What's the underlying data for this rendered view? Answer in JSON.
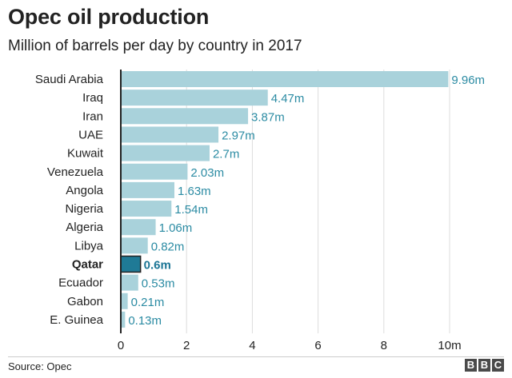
{
  "chart_data": {
    "type": "bar",
    "orientation": "horizontal",
    "title": "Opec oil production",
    "subtitle": "Million of barrels per day by country in 2017",
    "categories": [
      "Saudi Arabia",
      "Iraq",
      "Iran",
      "UAE",
      "Kuwait",
      "Venezuela",
      "Angola",
      "Nigeria",
      "Algeria",
      "Libya",
      "Qatar",
      "Ecuador",
      "Gabon",
      "E. Guinea"
    ],
    "values": [
      9.96,
      4.47,
      3.87,
      2.97,
      2.7,
      2.03,
      1.63,
      1.54,
      1.06,
      0.82,
      0.6,
      0.53,
      0.21,
      0.13
    ],
    "value_labels": [
      "9.96m",
      "4.47m",
      "3.87m",
      "2.97m",
      "2.7m",
      "2.03m",
      "1.63m",
      "1.54m",
      "1.06m",
      "0.82m",
      "0.6m",
      "0.53m",
      "0.21m",
      "0.13m"
    ],
    "highlight": "Qatar",
    "xlim": [
      0,
      10
    ],
    "x_ticks": [
      0,
      2,
      4,
      6,
      8,
      10
    ],
    "x_tick_labels": [
      "0",
      "2",
      "4",
      "6",
      "8",
      "10m"
    ],
    "xlabel": "",
    "ylabel": "",
    "grid": true,
    "colors": {
      "bar": "#a9d2db",
      "highlight_bar": "#1f7a96",
      "highlight_outline": "#222222",
      "label": "#2b8ba3",
      "grid": "#dddddd",
      "axis": "#222222"
    }
  },
  "footer": {
    "source": "Source: Opec",
    "logo_letters": [
      "B",
      "B",
      "C"
    ]
  }
}
